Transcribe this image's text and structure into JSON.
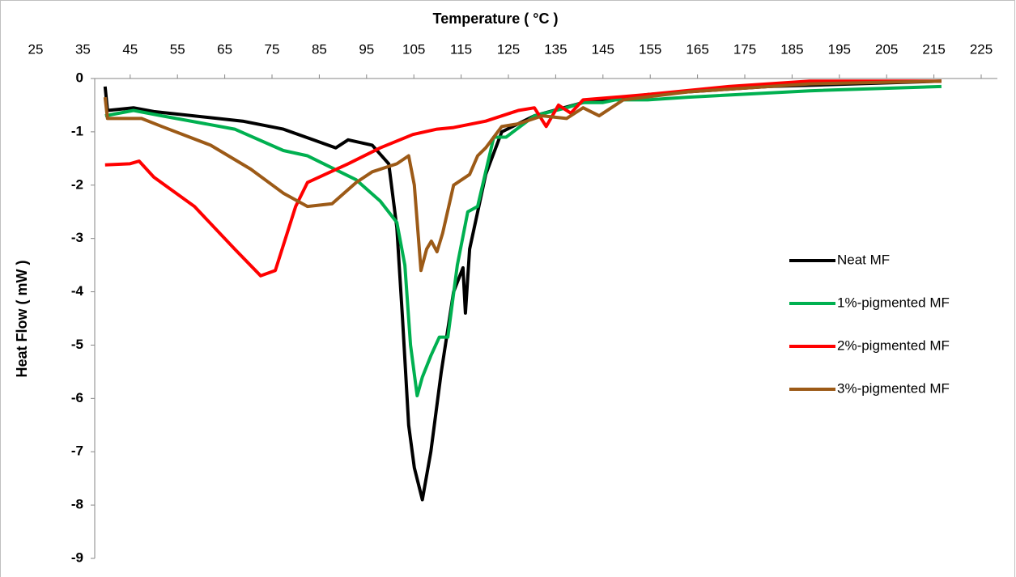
{
  "chart_data": {
    "type": "line",
    "x_label": "Temperature ( °C )",
    "y_label": "Heat Flow ( mW )",
    "xlim": [
      12.6,
      227.5
    ],
    "ylim": [
      -9,
      0
    ],
    "xticks": [
      25,
      35,
      45,
      55,
      65,
      75,
      85,
      95,
      105,
      115,
      125,
      135,
      145,
      155,
      165,
      175,
      185,
      195,
      205,
      215,
      225
    ],
    "yticks": [
      0,
      -1,
      -2,
      -3,
      -4,
      -5,
      -6,
      -7,
      -8,
      -9
    ],
    "legend": "right",
    "series": [
      {
        "name": "Neat MF",
        "color": "#000000",
        "x": [
          39.7,
          40.2,
          45.7,
          50.0,
          68.8,
          77.4,
          88.5,
          91.1,
          96.2,
          99.7,
          101.4,
          102.6,
          103.9,
          105.1,
          106.8,
          108.6,
          110.8,
          113.4,
          115.4,
          115.9,
          116.8,
          120.2,
          123.6,
          130.5,
          140.8,
          154.5,
          180.1,
          216.6
        ],
        "values": [
          -0.15,
          -0.6,
          -0.55,
          -0.62,
          -0.8,
          -0.95,
          -1.3,
          -1.15,
          -1.25,
          -1.6,
          -2.8,
          -4.5,
          -6.5,
          -7.3,
          -7.9,
          -7.0,
          -5.5,
          -4.0,
          -3.55,
          -4.4,
          -3.2,
          -1.8,
          -1.0,
          -0.7,
          -0.45,
          -0.3,
          -0.15,
          -0.05
        ]
      },
      {
        "name": "1%-pigmented MF",
        "color": "#00b050",
        "x": [
          39.7,
          45.7,
          51.7,
          67.1,
          77.4,
          82.5,
          92.8,
          97.9,
          101.4,
          103.1,
          104.3,
          105.7,
          106.8,
          108.6,
          110.4,
          112.2,
          114.2,
          116.4,
          118.5,
          121.9,
          124.5,
          130.5,
          137.3,
          140.8,
          145.0,
          147.6,
          154.5,
          163.0,
          188.7,
          216.6
        ],
        "values": [
          -0.7,
          -0.6,
          -0.7,
          -0.95,
          -1.35,
          -1.45,
          -1.9,
          -2.3,
          -2.7,
          -3.5,
          -5.0,
          -5.95,
          -5.6,
          -5.2,
          -4.85,
          -4.85,
          -3.5,
          -2.5,
          -2.4,
          -1.1,
          -1.1,
          -0.7,
          -0.55,
          -0.45,
          -0.45,
          -0.4,
          -0.4,
          -0.35,
          -0.23,
          -0.15
        ]
      },
      {
        "name": "2%-pigmented MF",
        "color": "#ff0000",
        "x": [
          39.7,
          44.9,
          46.9,
          50.0,
          58.6,
          67.1,
          72.6,
          75.7,
          80.0,
          82.5,
          91.1,
          97.9,
          104.8,
          109.9,
          113.4,
          120.2,
          127.1,
          130.5,
          133.0,
          135.6,
          138.2,
          140.8,
          154.5,
          171.6,
          188.7,
          216.6
        ],
        "values": [
          -1.62,
          -1.6,
          -1.55,
          -1.85,
          -2.4,
          -3.2,
          -3.7,
          -3.6,
          -2.4,
          -1.95,
          -1.6,
          -1.3,
          -1.05,
          -0.95,
          -0.92,
          -0.8,
          -0.6,
          -0.55,
          -0.9,
          -0.5,
          -0.65,
          -0.4,
          -0.3,
          -0.15,
          -0.05,
          -0.05
        ]
      },
      {
        "name": "3%-pigmented MF",
        "color": "#9c5a17",
        "x": [
          39.7,
          40.2,
          44.9,
          47.4,
          51.7,
          62.0,
          70.5,
          77.4,
          82.5,
          87.7,
          92.8,
          96.2,
          101.4,
          103.9,
          105.1,
          106.5,
          107.7,
          108.7,
          109.9,
          111.1,
          113.4,
          116.8,
          118.5,
          120.2,
          123.6,
          127.1,
          132.2,
          137.3,
          140.8,
          144.2,
          149.3,
          163.0,
          188.7,
          216.6
        ],
        "values": [
          -0.35,
          -0.75,
          -0.75,
          -0.75,
          -0.9,
          -1.25,
          -1.7,
          -2.15,
          -2.4,
          -2.35,
          -1.95,
          -1.75,
          -1.6,
          -1.45,
          -2.0,
          -3.6,
          -3.2,
          -3.05,
          -3.25,
          -2.9,
          -2.0,
          -1.8,
          -1.45,
          -1.3,
          -0.9,
          -0.85,
          -0.7,
          -0.75,
          -0.55,
          -0.7,
          -0.4,
          -0.25,
          -0.1,
          -0.05
        ]
      }
    ]
  }
}
